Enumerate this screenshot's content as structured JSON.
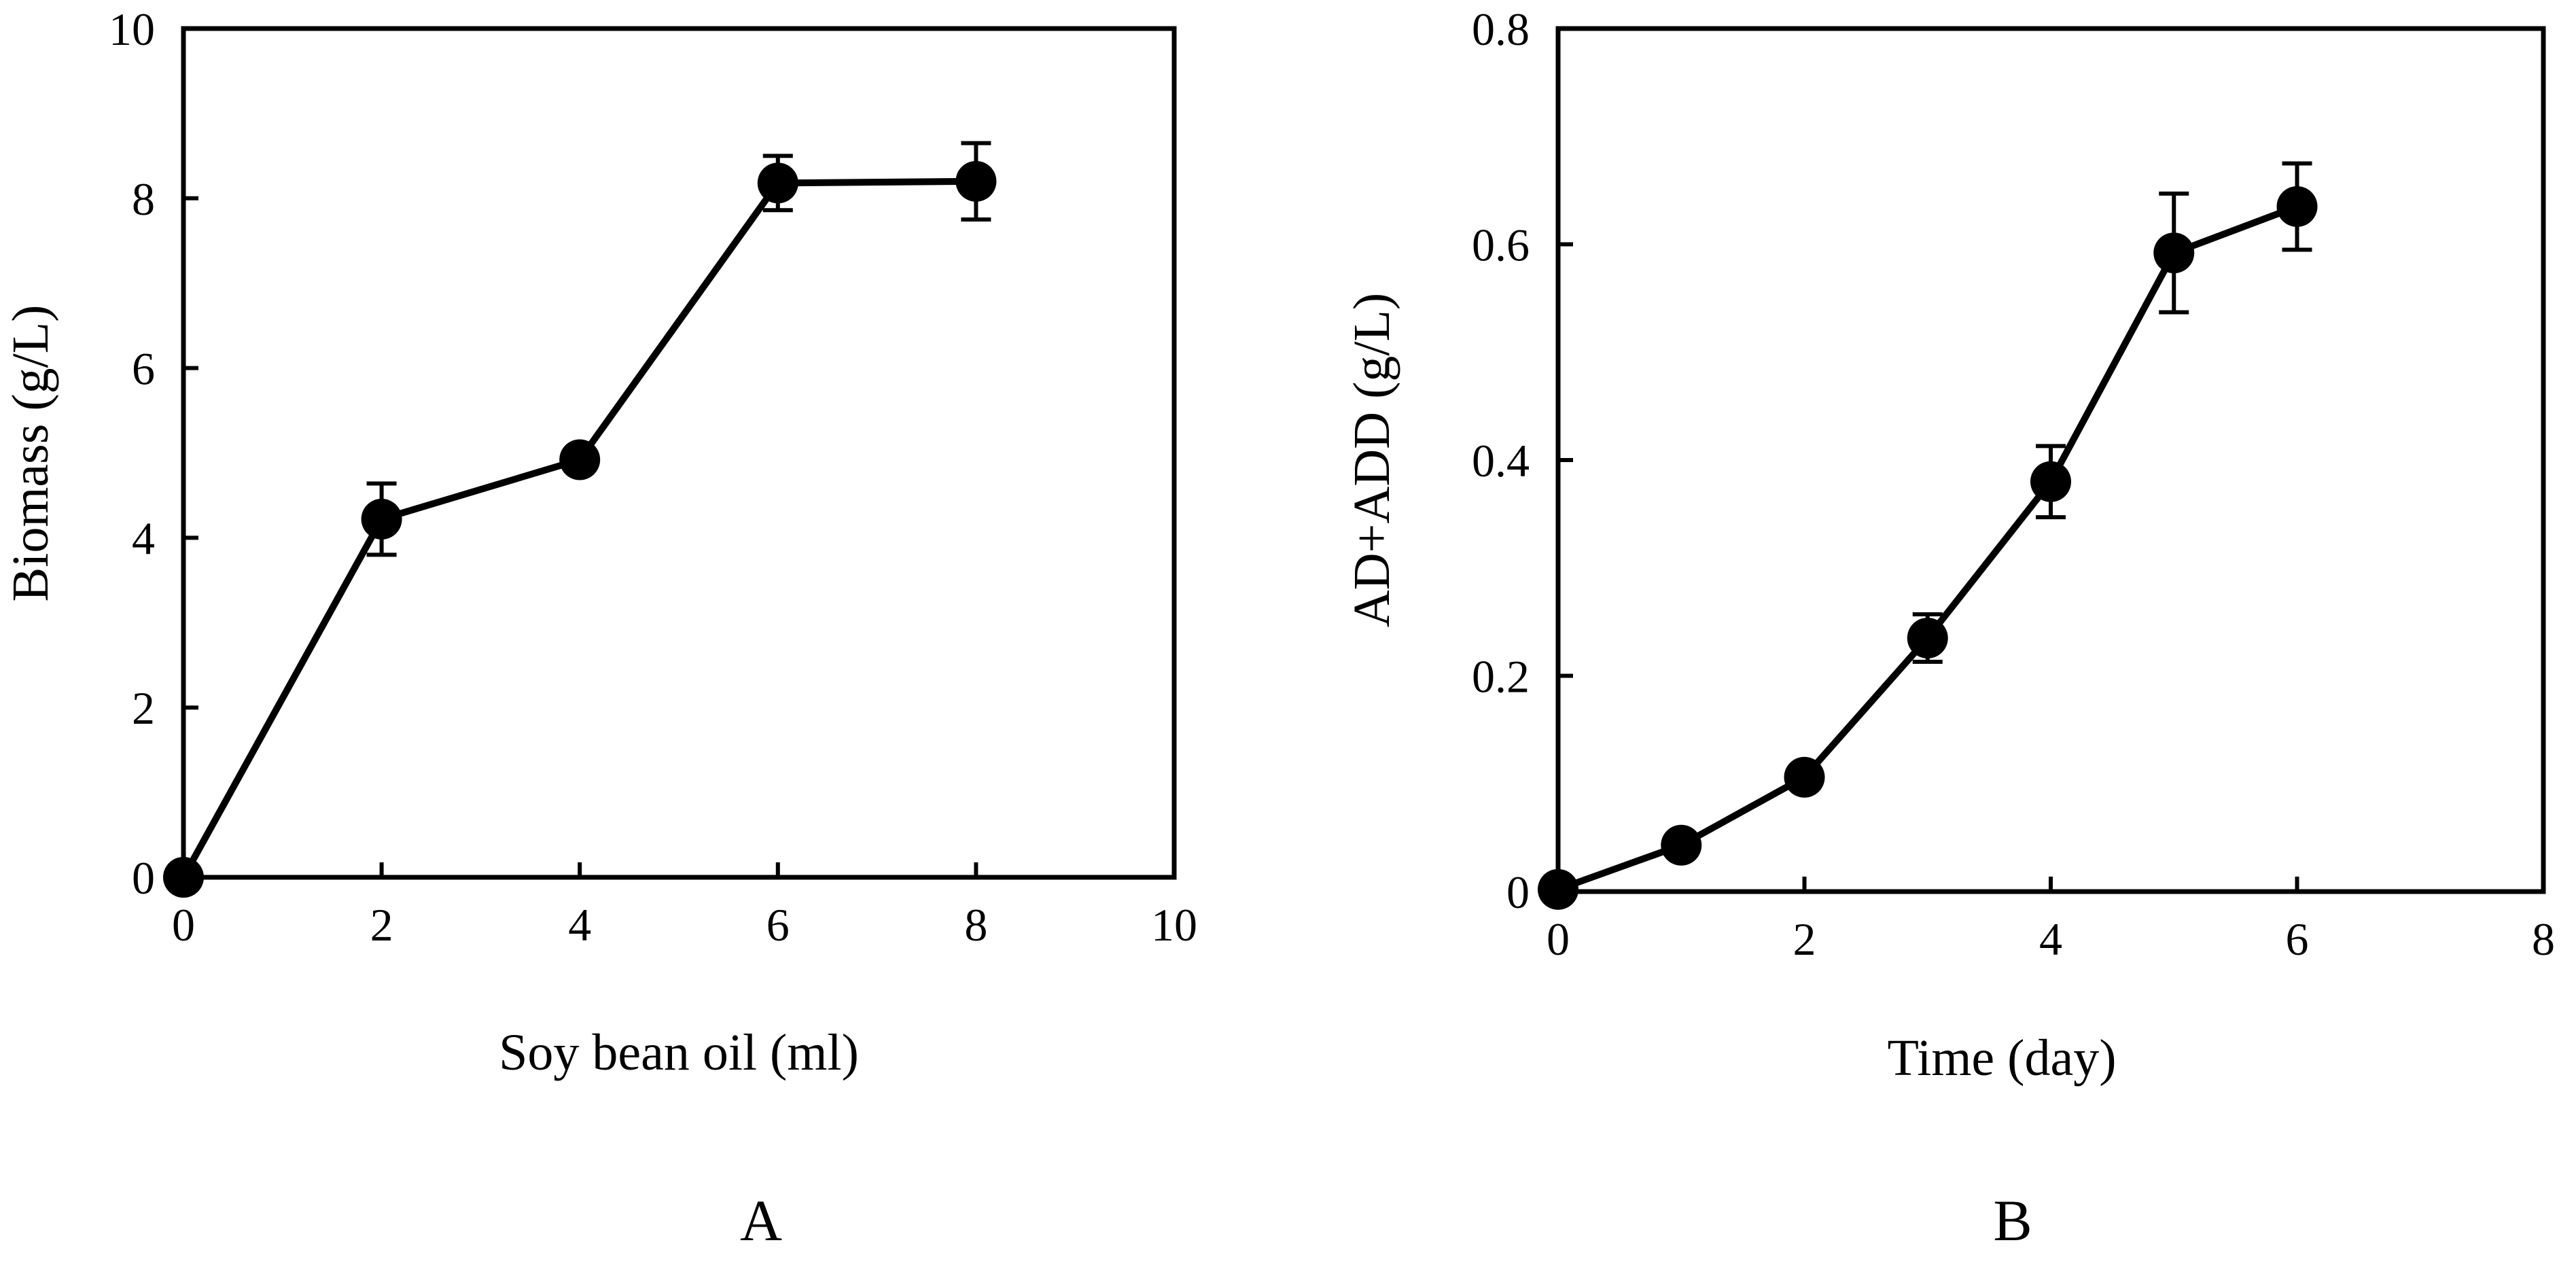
{
  "chart_data": [
    {
      "type": "line",
      "panel_label": "A",
      "title": "",
      "xlabel": "Soy bean oil (ml)",
      "ylabel": "Biomass (g/L)",
      "xlim": [
        0,
        10
      ],
      "ylim": [
        0,
        10
      ],
      "xticks": [
        0,
        2,
        4,
        6,
        8,
        10
      ],
      "yticks": [
        0,
        2,
        4,
        6,
        8,
        10
      ],
      "xtick_labels": [
        "0",
        "2",
        "4",
        "6",
        "8",
        "10"
      ],
      "ytick_labels": [
        "0",
        "2",
        "4",
        "6",
        "8",
        "10"
      ],
      "grid": false,
      "series": [
        {
          "name": "Biomass",
          "x": [
            0,
            2,
            4,
            6,
            8
          ],
          "y": [
            0,
            4.22,
            4.92,
            8.18,
            8.2
          ],
          "error": [
            0,
            0.42,
            0,
            0.32,
            0.45
          ]
        }
      ]
    },
    {
      "type": "line",
      "panel_label": "B",
      "title": "",
      "xlabel": "Time (day)",
      "ylabel": "AD+ADD (g/L)",
      "xlim": [
        0,
        8
      ],
      "ylim": [
        0,
        0.8
      ],
      "xticks": [
        0,
        2,
        4,
        6,
        8
      ],
      "yticks": [
        0,
        0.2,
        0.4,
        0.6,
        0.8
      ],
      "xtick_labels": [
        "0",
        "2",
        "4",
        "6",
        "8"
      ],
      "ytick_labels": [
        "0",
        "0.2",
        "0.4",
        "0.6",
        "0.8"
      ],
      "grid": false,
      "series": [
        {
          "name": "AD+ADD",
          "x": [
            0,
            1,
            2,
            3,
            4,
            5,
            6
          ],
          "y": [
            0.002,
            0.043,
            0.106,
            0.235,
            0.38,
            0.592,
            0.635
          ],
          "error": [
            0,
            0,
            0,
            0.022,
            0.033,
            0.055,
            0.04
          ]
        }
      ]
    }
  ]
}
